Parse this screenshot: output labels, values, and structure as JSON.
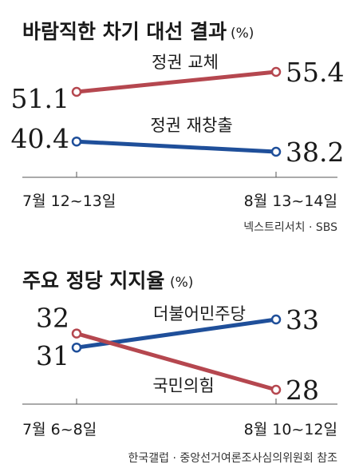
{
  "colors": {
    "red": "#b5474f",
    "blue": "#1f4f9a",
    "axis": "#555555"
  },
  "chart_data": [
    {
      "type": "line",
      "title": "바람직한 차기 대선 결과",
      "unit": "(%)",
      "categories": [
        "7월 12~13일",
        "8월 13~14일"
      ],
      "series": [
        {
          "name": "정권 교체",
          "values": [
            51.1,
            55.4
          ],
          "color": "red"
        },
        {
          "name": "정권 재창출",
          "values": [
            40.4,
            38.2
          ],
          "color": "blue"
        }
      ],
      "source": "넥스트리서치 · SBS"
    },
    {
      "type": "line",
      "title": "주요 정당 지지율",
      "unit": "(%)",
      "categories": [
        "7월 6~8일",
        "8월 10~12일"
      ],
      "series": [
        {
          "name": "더불어민주당",
          "values": [
            31,
            33
          ],
          "color": "blue"
        },
        {
          "name": "국민의힘",
          "values": [
            32,
            28
          ],
          "color": "red"
        }
      ],
      "source": "한국갤럽 · 중앙선거여론조사심의위원회 참조"
    }
  ]
}
